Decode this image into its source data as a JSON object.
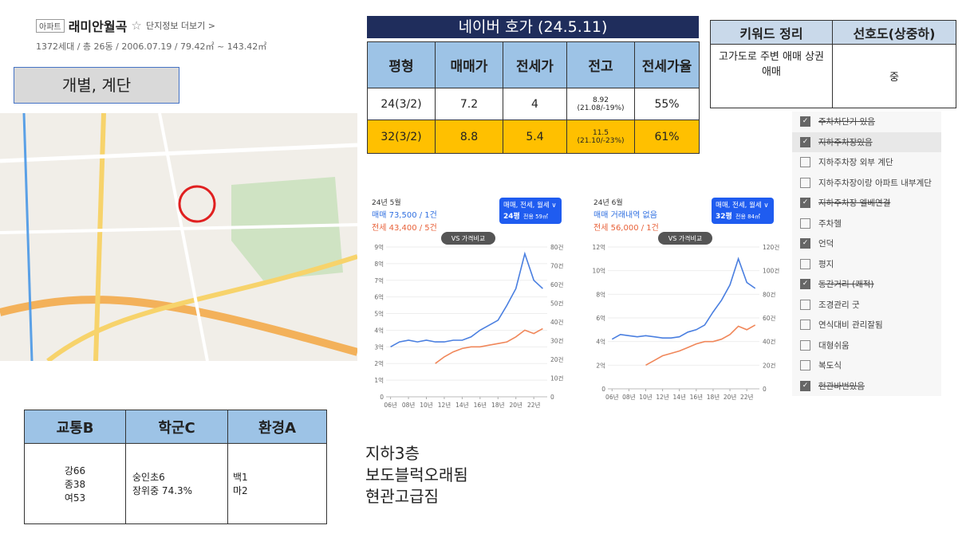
{
  "header": {
    "badge": "아파트",
    "name": "래미안월곡",
    "star": "☆",
    "link": "단지정보 더보기 >",
    "info": "1372세대 / 총 26동 / 2006.07.19 / 79.42㎡ ~ 143.42㎡"
  },
  "label_box": "개별, 계단",
  "naver_table": {
    "title": "네이버 호가 (24.5.11)",
    "columns": [
      "평형",
      "매매가",
      "전세가",
      "전고",
      "전세가율"
    ],
    "rows": [
      [
        "24(3/2)",
        "7.2",
        "4",
        {
          "main": "8.92",
          "sub": "(21.08/-19%)"
        },
        "55%"
      ],
      [
        "32(3/2)",
        "8.8",
        "5.4",
        {
          "main": "11.5",
          "sub": "(21.10/-23%)"
        },
        "61%"
      ]
    ]
  },
  "keyword_table": {
    "columns": [
      "키워드 정리",
      "선호도(상중하)"
    ],
    "keyword": "고가도로 주변 애매 상권 애매",
    "preference": "중"
  },
  "checklist": [
    {
      "label": "주차차단기 있음",
      "checked": true,
      "strike": true
    },
    {
      "label": "지하주차장있음",
      "checked": true,
      "strike": true
    },
    {
      "label": "지하주차장 외부 계단",
      "checked": false,
      "strike": false
    },
    {
      "label": "지하주차장이랑 아파트 내부계단",
      "checked": false,
      "strike": false
    },
    {
      "label": "지하주차장 엘베연결",
      "checked": true,
      "strike": true
    },
    {
      "label": "주차헬",
      "checked": false,
      "strike": false
    },
    {
      "label": "언덕",
      "checked": true,
      "strike": false
    },
    {
      "label": "평지",
      "checked": false,
      "strike": false
    },
    {
      "label": "동간거리 (쾌적)",
      "checked": true,
      "strike": true
    },
    {
      "label": "조경관리 굿",
      "checked": false,
      "strike": false
    },
    {
      "label": "연식대비 관리잘됨",
      "checked": false,
      "strike": false
    },
    {
      "label": "대형쉬움",
      "checked": false,
      "strike": false
    },
    {
      "label": "복도식",
      "checked": false,
      "strike": false
    },
    {
      "label": "현관바번있음",
      "checked": true,
      "strike": true
    }
  ],
  "scores": {
    "columns": [
      "교통B",
      "학군C",
      "환경A"
    ],
    "cells": [
      [
        "강66",
        "종38",
        "여53"
      ],
      [
        "숭인초6",
        "장위중 74.3%"
      ],
      [
        "백1",
        "마2"
      ]
    ]
  },
  "notes": [
    "지하3층",
    "보도블럭오래됨",
    "현관고급짐"
  ],
  "chart_data": [
    {
      "type": "line",
      "date": "24년 5월",
      "sale": "매매 73,500 / 1건",
      "rent": "전세 43,400 / 5건",
      "filter": "매매, 전세, 월세 ∨",
      "size": "24평",
      "area": "전용 59㎡",
      "compare": "VS 가격비교",
      "x": [
        2006,
        2007,
        2008,
        2009,
        2010,
        2011,
        2012,
        2013,
        2014,
        2015,
        2016,
        2017,
        2018,
        2019,
        2020,
        2021,
        2022,
        2023
      ],
      "series": [
        {
          "color": "#4a7fe0",
          "values": [
            3.0,
            3.3,
            3.4,
            3.3,
            3.4,
            3.3,
            3.3,
            3.4,
            3.4,
            3.6,
            4.0,
            4.3,
            4.6,
            5.5,
            6.5,
            8.6,
            7.0,
            6.5
          ]
        },
        {
          "color": "#f0875a",
          "values": [
            null,
            null,
            null,
            null,
            null,
            2.0,
            2.4,
            2.7,
            2.9,
            3.0,
            3.0,
            3.1,
            3.2,
            3.3,
            3.6,
            4.0,
            3.8,
            4.1
          ]
        }
      ],
      "xlim": [
        2005.5,
        2023.5
      ],
      "xticks": [
        {
          "value": 2006,
          "label": "06년"
        },
        {
          "value": 2008,
          "label": "08년"
        },
        {
          "value": 2010,
          "label": "10년"
        },
        {
          "value": 2012,
          "label": "12년"
        },
        {
          "value": 2014,
          "label": "14년"
        },
        {
          "value": 2016,
          "label": "16년"
        },
        {
          "value": 2018,
          "label": "18년"
        },
        {
          "value": 2020,
          "label": "20년"
        },
        {
          "value": 2022,
          "label": "22년"
        }
      ],
      "ylim": [
        0,
        9
      ],
      "yticks": [
        0,
        {
          "value": 1,
          "label": "1억"
        },
        {
          "value": 2,
          "label": "2억"
        },
        {
          "value": 3,
          "label": "3억"
        },
        {
          "value": 4,
          "label": "4억"
        },
        {
          "value": 5,
          "label": "5억"
        },
        {
          "value": 6,
          "label": "6억"
        },
        {
          "value": 7,
          "label": "7억"
        },
        {
          "value": 8,
          "label": "8억"
        },
        {
          "value": 9,
          "label": "9억"
        }
      ],
      "y2lim": [
        0,
        80
      ],
      "y2ticks": [
        0,
        {
          "value": 10,
          "label": "10건"
        },
        {
          "value": 20,
          "label": "20건"
        },
        {
          "value": 30,
          "label": "30건"
        },
        {
          "value": 40,
          "label": "40건"
        },
        {
          "value": 50,
          "label": "50건"
        },
        {
          "value": 60,
          "label": "60건"
        },
        {
          "value": 70,
          "label": "70건"
        },
        {
          "value": 80,
          "label": "80건"
        }
      ],
      "grid": true
    },
    {
      "type": "line",
      "date": "24년 6월",
      "sale": "매매 거래내역 없음",
      "rent": "전세 56,000 / 1건",
      "filter": "매매, 전세, 월세 ∨",
      "size": "32평",
      "area": "전용 84㎡",
      "compare": "VS 가격비교",
      "x": [
        2006,
        2007,
        2008,
        2009,
        2010,
        2011,
        2012,
        2013,
        2014,
        2015,
        2016,
        2017,
        2018,
        2019,
        2020,
        2021,
        2022,
        2023
      ],
      "series": [
        {
          "color": "#4a7fe0",
          "values": [
            4.2,
            4.6,
            4.5,
            4.4,
            4.5,
            4.4,
            4.3,
            4.3,
            4.4,
            4.8,
            5.0,
            5.4,
            6.5,
            7.5,
            8.8,
            11.0,
            9.0,
            8.5
          ]
        },
        {
          "color": "#f0875a",
          "values": [
            null,
            null,
            null,
            null,
            2.0,
            2.4,
            2.8,
            3.0,
            3.2,
            3.5,
            3.8,
            4.0,
            4.0,
            4.2,
            4.6,
            5.3,
            5.0,
            5.4
          ]
        }
      ],
      "xlim": [
        2005.5,
        2023.5
      ],
      "xticks": [
        {
          "value": 2006,
          "label": "06년"
        },
        {
          "value": 2008,
          "label": "08년"
        },
        {
          "value": 2010,
          "label": "10년"
        },
        {
          "value": 2012,
          "label": "12년"
        },
        {
          "value": 2014,
          "label": "14년"
        },
        {
          "value": 2016,
          "label": "16년"
        },
        {
          "value": 2018,
          "label": "18년"
        },
        {
          "value": 2020,
          "label": "20년"
        },
        {
          "value": 2022,
          "label": "22년"
        }
      ],
      "ylim": [
        0,
        12
      ],
      "yticks": [
        0,
        {
          "value": 2,
          "label": "2억"
        },
        {
          "value": 4,
          "label": "4억"
        },
        {
          "value": 6,
          "label": "6억"
        },
        {
          "value": 8,
          "label": "8억"
        },
        {
          "value": 10,
          "label": "10억"
        },
        {
          "value": 12,
          "label": "12억"
        }
      ],
      "y2lim": [
        0,
        120
      ],
      "y2ticks": [
        0,
        {
          "value": 20,
          "label": "20건"
        },
        {
          "value": 40,
          "label": "40건"
        },
        {
          "value": 60,
          "label": "60건"
        },
        {
          "value": 80,
          "label": "80건"
        },
        {
          "value": 100,
          "label": "100건"
        },
        {
          "value": 120,
          "label": "120건"
        }
      ],
      "grid": true
    }
  ]
}
